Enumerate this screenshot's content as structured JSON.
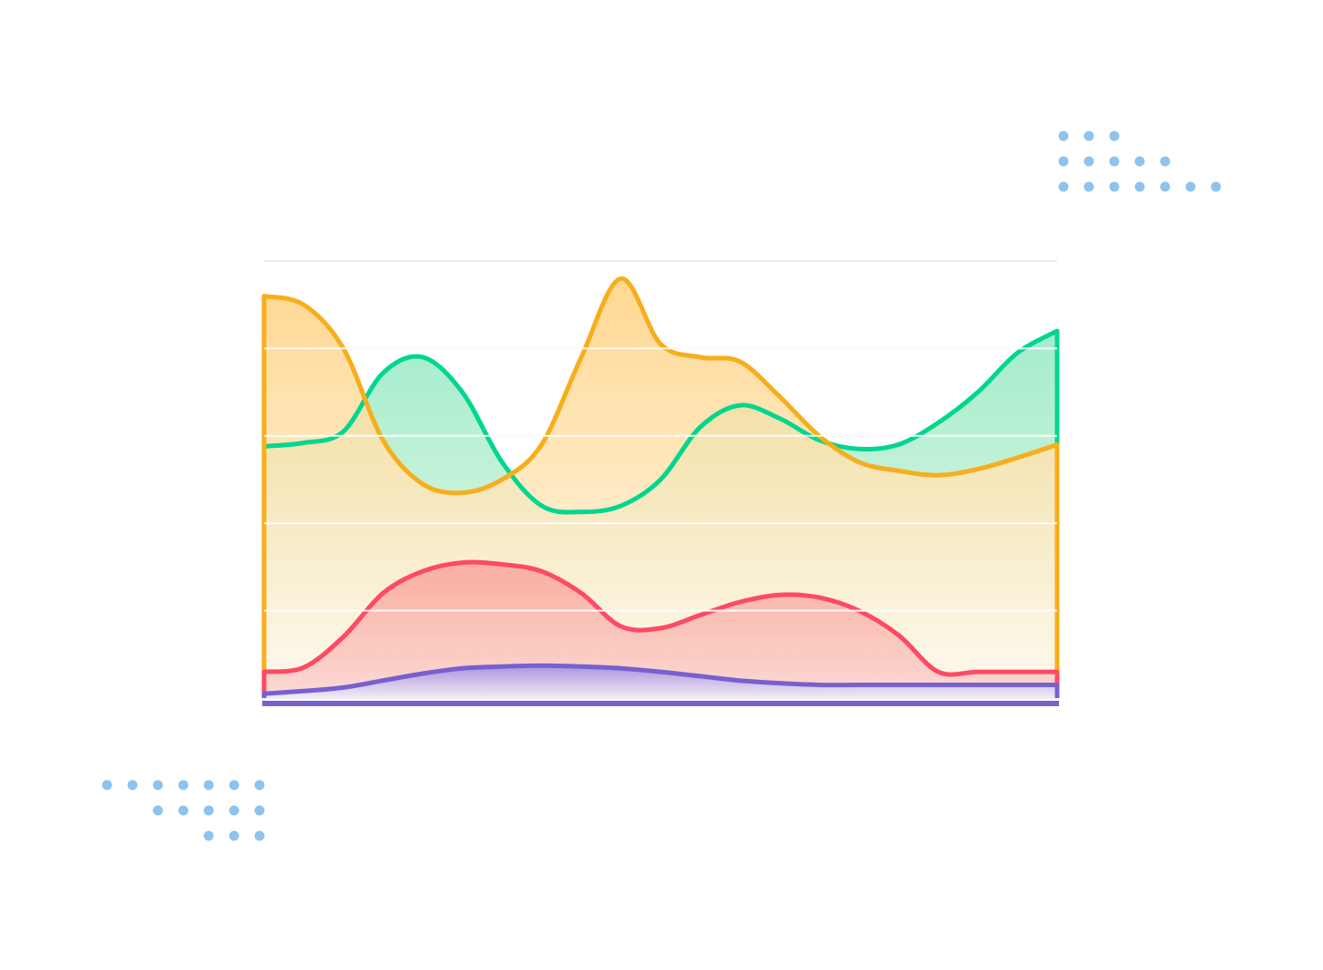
{
  "chart_data": {
    "type": "area",
    "title": "",
    "xlabel": "",
    "ylabel": "",
    "x": [
      0,
      1,
      2,
      3,
      4,
      5,
      6,
      7,
      8,
      9,
      10,
      11,
      12,
      13,
      14,
      15,
      16,
      17,
      18,
      19,
      20
    ],
    "ylim": [
      0,
      5
    ],
    "grid": true,
    "legend": "none",
    "tick_labels_visible": false,
    "series": [
      {
        "color": "#00d68f",
        "fill_top": "#93e9c3",
        "fill_bottom": "#f0f8e4",
        "values": [
          2.88,
          2.92,
          3.05,
          3.72,
          3.9,
          3.5,
          2.7,
          2.2,
          2.13,
          2.2,
          2.5,
          3.1,
          3.35,
          3.2,
          2.95,
          2.85,
          2.9,
          3.15,
          3.5,
          3.95,
          4.2
        ]
      },
      {
        "color": "#f7ae1b",
        "fill_top": "#ffd17e",
        "fill_bottom": "#fffaf2",
        "values": [
          4.6,
          4.5,
          4.0,
          2.95,
          2.45,
          2.35,
          2.5,
          2.9,
          3.9,
          4.8,
          4.05,
          3.9,
          3.85,
          3.45,
          3.0,
          2.7,
          2.6,
          2.55,
          2.62,
          2.75,
          2.9
        ]
      },
      {
        "color": "#ff4a64",
        "fill_top": "#f9a396",
        "fill_bottom": "#fcd3d0",
        "values": [
          0.3,
          0.35,
          0.7,
          1.2,
          1.45,
          1.55,
          1.53,
          1.45,
          1.2,
          0.82,
          0.8,
          0.95,
          1.1,
          1.18,
          1.15,
          1.0,
          0.72,
          0.3,
          0.3,
          0.3,
          0.3
        ]
      },
      {
        "color": "#7760d1",
        "fill_top": "#9d8ae0",
        "fill_bottom": "#f1eefb",
        "values": [
          0.05,
          0.08,
          0.12,
          0.2,
          0.28,
          0.34,
          0.36,
          0.37,
          0.36,
          0.34,
          0.3,
          0.25,
          0.2,
          0.17,
          0.15,
          0.15,
          0.15,
          0.15,
          0.15,
          0.15,
          0.15
        ]
      }
    ]
  },
  "decoration": {
    "dot_color": "#8ec3ee",
    "top_right_rows": [
      3,
      5,
      7
    ],
    "bottom_left_rows": [
      7,
      5,
      3
    ]
  }
}
